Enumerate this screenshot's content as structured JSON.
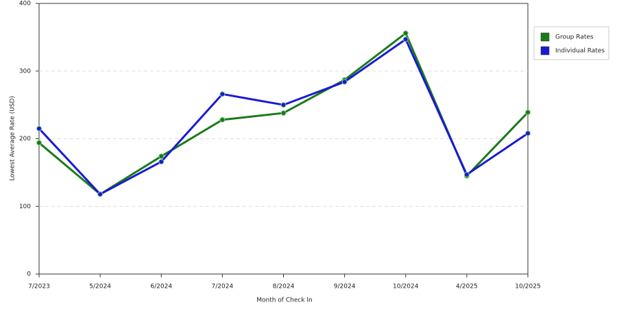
{
  "chart_data": {
    "type": "line",
    "x_label": "Month of Check In",
    "y_label": "Lowest Average Rate (USD)",
    "categories": [
      "7/2023",
      "5/2024",
      "6/2024",
      "7/2024",
      "8/2024",
      "9/2024",
      "10/2024",
      "4/2025",
      "10/2025"
    ],
    "series": [
      {
        "name": "Group Rates",
        "color": "#1a7a1a",
        "values": [
          194,
          118,
          174,
          228,
          238,
          287,
          356,
          145,
          239
        ]
      },
      {
        "name": "Individual Rates",
        "color": "#1a1ad4",
        "values": [
          215,
          118,
          166,
          266,
          250,
          284,
          347,
          147,
          208
        ]
      }
    ],
    "ylim": [
      0,
      400
    ],
    "yticks": [
      0,
      100,
      200,
      300,
      400
    ],
    "grid": true,
    "legend": "right"
  }
}
